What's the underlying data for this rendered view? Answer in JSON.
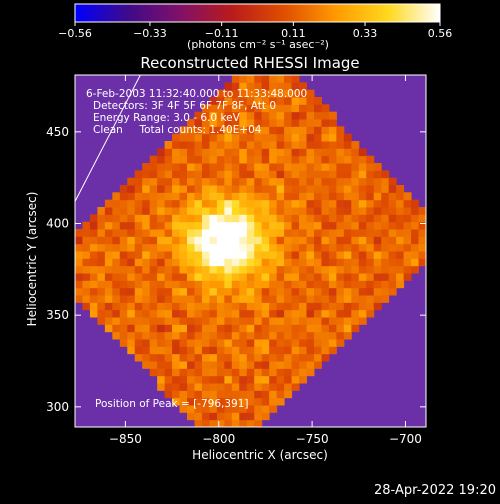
{
  "chart_data": {
    "type": "heatmap",
    "title": "Reconstructed RHESSI Image",
    "xlabel": "Heliocentric X (arcsec)",
    "ylabel": "Heliocentric Y (arcsec)",
    "xlim": [
      -877,
      -689
    ],
    "ylim": [
      289,
      481
    ],
    "x_ticks": [
      -850,
      -800,
      -750,
      -700
    ],
    "x_tick_labels": [
      "−850",
      "−800",
      "−750",
      "−700"
    ],
    "y_ticks": [
      300,
      350,
      400,
      450
    ],
    "y_tick_labels": [
      "300",
      "350",
      "400",
      "450"
    ],
    "colorbar": {
      "range": [
        -0.56,
        0.56
      ],
      "ticks": [
        -0.56,
        -0.33,
        -0.11,
        0.11,
        0.33,
        0.56
      ],
      "tick_labels": [
        "−0.56",
        "−0.33",
        "−0.11",
        "0.11",
        "0.33",
        "0.56"
      ],
      "units_text": "(photons cm⁻² s⁻¹ asec⁻²)",
      "colors": [
        "#0000ff",
        "#3d0a8a",
        "#80106a",
        "#b81b1b",
        "#e04d00",
        "#ff9a00",
        "#ffd81c",
        "#ffffff"
      ]
    },
    "info_lines": [
      "6-Feb-2003 11:32:40.000 to 11:33:48.000",
      "Detectors: 3F 4F 5F 6F 7F 8F, Att 0",
      "Energy Range: 3.0 - 6.0 keV",
      "Clean     Total counts: 1.40E+04"
    ],
    "peak_text": "Position of Peak = [-796,391]",
    "peak": [
      -796,
      391
    ],
    "background_color": "#6b30a8",
    "limb_line": [
      [
        -877,
        412
      ],
      [
        -842,
        481
      ]
    ]
  },
  "timestamp": "28-Apr-2022 19:20"
}
